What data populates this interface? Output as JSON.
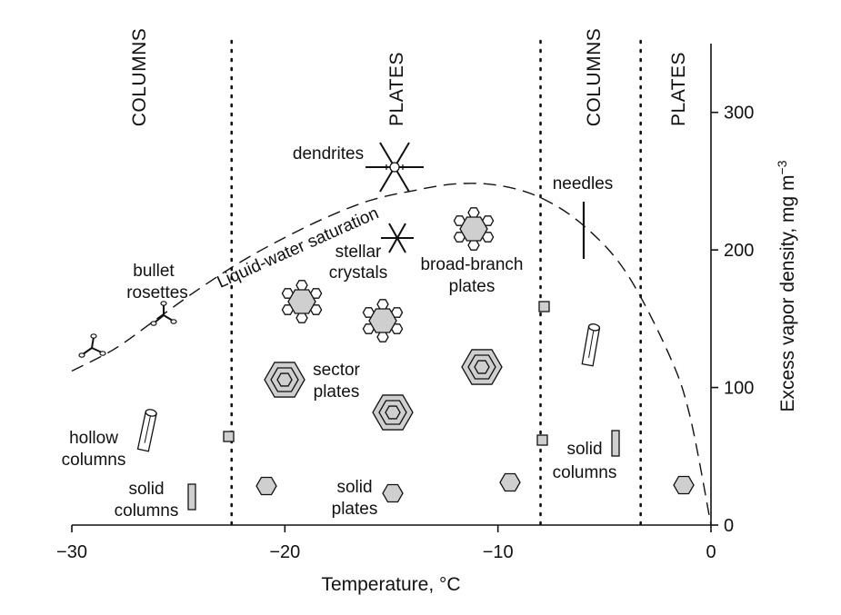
{
  "chart_data": {
    "type": "diagram",
    "xlabel": "Temperature, °C",
    "ylabel": "Excess vapor density, mg m",
    "ylabel_superscript": "−3",
    "xlim": [
      -30,
      0
    ],
    "ylim": [
      0,
      350
    ],
    "x_ticks": [
      {
        "value": -30,
        "label": "−30"
      },
      {
        "value": -20,
        "label": "−20"
      },
      {
        "value": -10,
        "label": "−10"
      },
      {
        "value": 0,
        "label": "0"
      }
    ],
    "y_ticks": [
      {
        "value": 0,
        "label": "0"
      },
      {
        "value": 100,
        "label": "100"
      },
      {
        "value": 200,
        "label": "200"
      },
      {
        "value": 300,
        "label": "300"
      }
    ],
    "regime_boundaries_celsius": [
      -22.5,
      -8,
      -3.3
    ],
    "regimes": [
      "COLUMNS",
      "PLATES",
      "COLUMNS",
      "PLATES"
    ],
    "saturation_curve": {
      "label": "Liquid-water saturation",
      "points": [
        [
          -30,
          112
        ],
        [
          -28,
          128
        ],
        [
          -26,
          150
        ],
        [
          -24,
          172
        ],
        [
          -22,
          192
        ],
        [
          -20,
          209
        ],
        [
          -18,
          224
        ],
        [
          -16,
          236
        ],
        [
          -14,
          243
        ],
        [
          -12,
          248
        ],
        [
          -10,
          247
        ],
        [
          -8,
          238
        ],
        [
          -6,
          218
        ],
        [
          -4,
          184
        ],
        [
          -2,
          125
        ],
        [
          -1,
          80
        ],
        [
          0,
          0
        ]
      ]
    },
    "crystal_labels": {
      "dendrites": "dendrites",
      "needles": "needles",
      "stellar": [
        "stellar",
        "crystals"
      ],
      "broad_branch": [
        "broad-branch",
        "plates"
      ],
      "bullet": [
        "bullet",
        "rosettes"
      ],
      "sector": [
        "sector",
        "plates"
      ],
      "hollow": [
        "hollow",
        "columns"
      ],
      "solid_columns_left": [
        "solid",
        "columns"
      ],
      "solid_plates": [
        "solid",
        "plates"
      ],
      "solid_columns_right": [
        "solid",
        "columns"
      ]
    }
  }
}
